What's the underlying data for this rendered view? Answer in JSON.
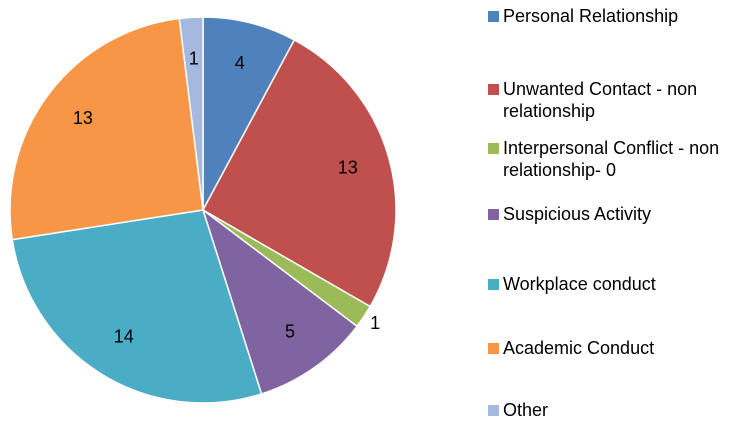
{
  "chart_data": {
    "type": "pie",
    "categories": [
      "Personal Relationship",
      "Unwanted Contact - non relationship",
      "Interpersonal Conflict - non relationship- 0",
      "Suspicious Activity",
      "Workplace conduct",
      "Academic Conduct",
      "Other"
    ],
    "values": [
      4,
      13,
      1,
      5,
      14,
      13,
      1
    ],
    "colors": [
      "#4f81bd",
      "#c0504d",
      "#9bbb59",
      "#8064a2",
      "#4bacc6",
      "#f79646",
      "#a5b8dd"
    ],
    "legend": "right"
  }
}
